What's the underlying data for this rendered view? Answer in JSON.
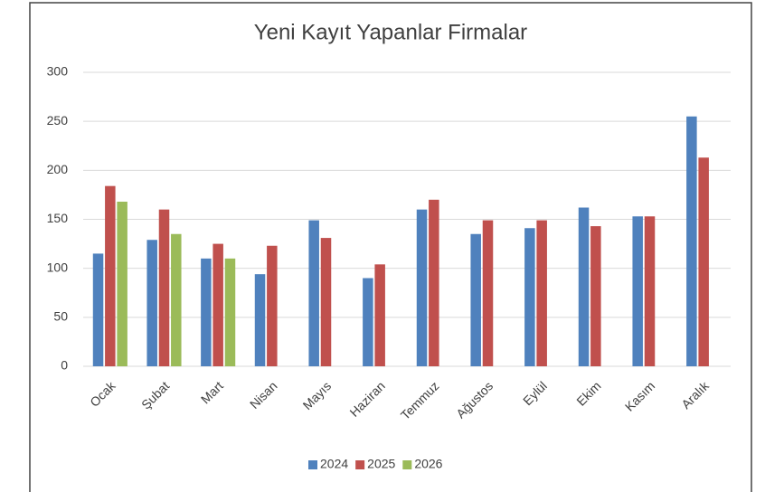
{
  "chart_data": {
    "type": "bar",
    "title": "Yeni Kayıt Yapanlar Firmalar",
    "categories": [
      "Ocak",
      "Şubat",
      "Mart",
      "Nisan",
      "Mayıs",
      "Haziran",
      "Temmuz",
      "Ağustos",
      "Eylül",
      "Ekim",
      "Kasım",
      "Aralık"
    ],
    "series": [
      {
        "name": "2024",
        "color": "#4f81bd",
        "values": [
          115,
          129,
          110,
          94,
          149,
          90,
          160,
          135,
          141,
          162,
          153,
          255
        ]
      },
      {
        "name": "2025",
        "color": "#c0504d",
        "values": [
          184,
          160,
          125,
          123,
          131,
          104,
          170,
          149,
          149,
          143,
          153,
          213
        ]
      },
      {
        "name": "2026",
        "color": "#9bbb59",
        "values": [
          168,
          135,
          110,
          null,
          null,
          null,
          null,
          null,
          null,
          null,
          null,
          null
        ]
      }
    ],
    "ylim": [
      0,
      300
    ],
    "yticks": [
      0,
      50,
      100,
      150,
      200,
      250,
      300
    ],
    "grid": true,
    "legend": "bottom"
  }
}
